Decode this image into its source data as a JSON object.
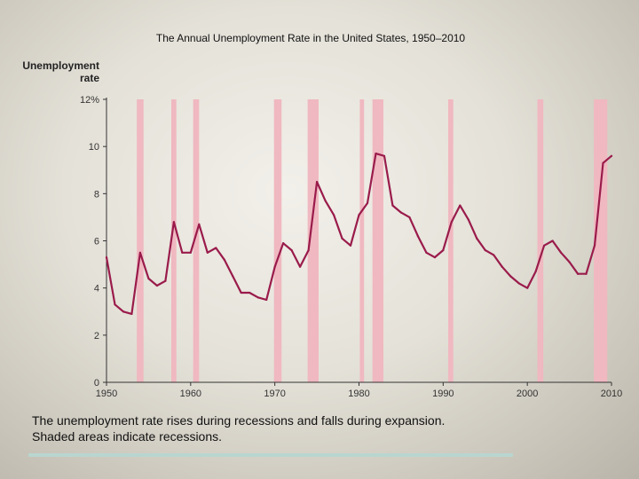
{
  "page": {
    "caption_lines": [
      "The unemployment rate rises during recessions and falls during expansion.",
      "Shaded areas indicate recessions."
    ]
  },
  "chart_data": {
    "type": "line",
    "title": "The Annual Unemployment Rate in the United States, 1950–2010",
    "ylabel_lines": [
      "Unemployment",
      "rate"
    ],
    "xlabel": "",
    "xlim": [
      1950,
      2010
    ],
    "ylim": [
      0,
      12
    ],
    "x_ticks": [
      1950,
      1960,
      1970,
      1980,
      1990,
      2000,
      2010
    ],
    "x_tick_labels": [
      "1950",
      "1960",
      "1970",
      "1980",
      "1990",
      "2000",
      "2010"
    ],
    "y_ticks": [
      0,
      2,
      4,
      6,
      8,
      10,
      12
    ],
    "y_tick_labels": [
      "0",
      "2",
      "4",
      "6",
      "8",
      "10",
      "12%"
    ],
    "grid": false,
    "colors": {
      "line": "#9a1b4b",
      "recession": "#f0b8c0",
      "axis": "#333333"
    },
    "recessions": [
      [
        1953.6,
        1954.4
      ],
      [
        1957.7,
        1958.3
      ],
      [
        1960.3,
        1961.0
      ],
      [
        1969.9,
        1970.8
      ],
      [
        1973.9,
        1975.2
      ],
      [
        1980.1,
        1980.6
      ],
      [
        1981.6,
        1982.9
      ],
      [
        1990.6,
        1991.2
      ],
      [
        2001.2,
        2001.9
      ],
      [
        2007.9,
        2009.5
      ]
    ],
    "series": [
      {
        "x": [
          1950,
          1951,
          1952,
          1953,
          1954,
          1955,
          1956,
          1957,
          1958,
          1959,
          1960,
          1961,
          1962,
          1963,
          1964,
          1965,
          1966,
          1967,
          1968,
          1969,
          1970,
          1971,
          1972,
          1973,
          1974,
          1975,
          1976,
          1977,
          1978,
          1979,
          1980,
          1981,
          1982,
          1983,
          1984,
          1985,
          1986,
          1987,
          1988,
          1989,
          1990,
          1991,
          1992,
          1993,
          1994,
          1995,
          1996,
          1997,
          1998,
          1999,
          2000,
          2001,
          2002,
          2003,
          2004,
          2005,
          2006,
          2007,
          2008,
          2009,
          2010
        ],
        "values": [
          5.3,
          3.3,
          3.0,
          2.9,
          5.5,
          4.4,
          4.1,
          4.3,
          6.8,
          5.5,
          5.5,
          6.7,
          5.5,
          5.7,
          5.2,
          4.5,
          3.8,
          3.8,
          3.6,
          3.5,
          4.9,
          5.9,
          5.6,
          4.9,
          5.6,
          8.5,
          7.7,
          7.1,
          6.1,
          5.8,
          7.1,
          7.6,
          9.7,
          9.6,
          7.5,
          7.2,
          7.0,
          6.2,
          5.5,
          5.3,
          5.6,
          6.8,
          7.5,
          6.9,
          6.1,
          5.6,
          5.4,
          4.9,
          4.5,
          4.2,
          4.0,
          4.7,
          5.8,
          6.0,
          5.5,
          5.1,
          4.6,
          4.6,
          5.8,
          9.3,
          9.6
        ]
      }
    ]
  }
}
